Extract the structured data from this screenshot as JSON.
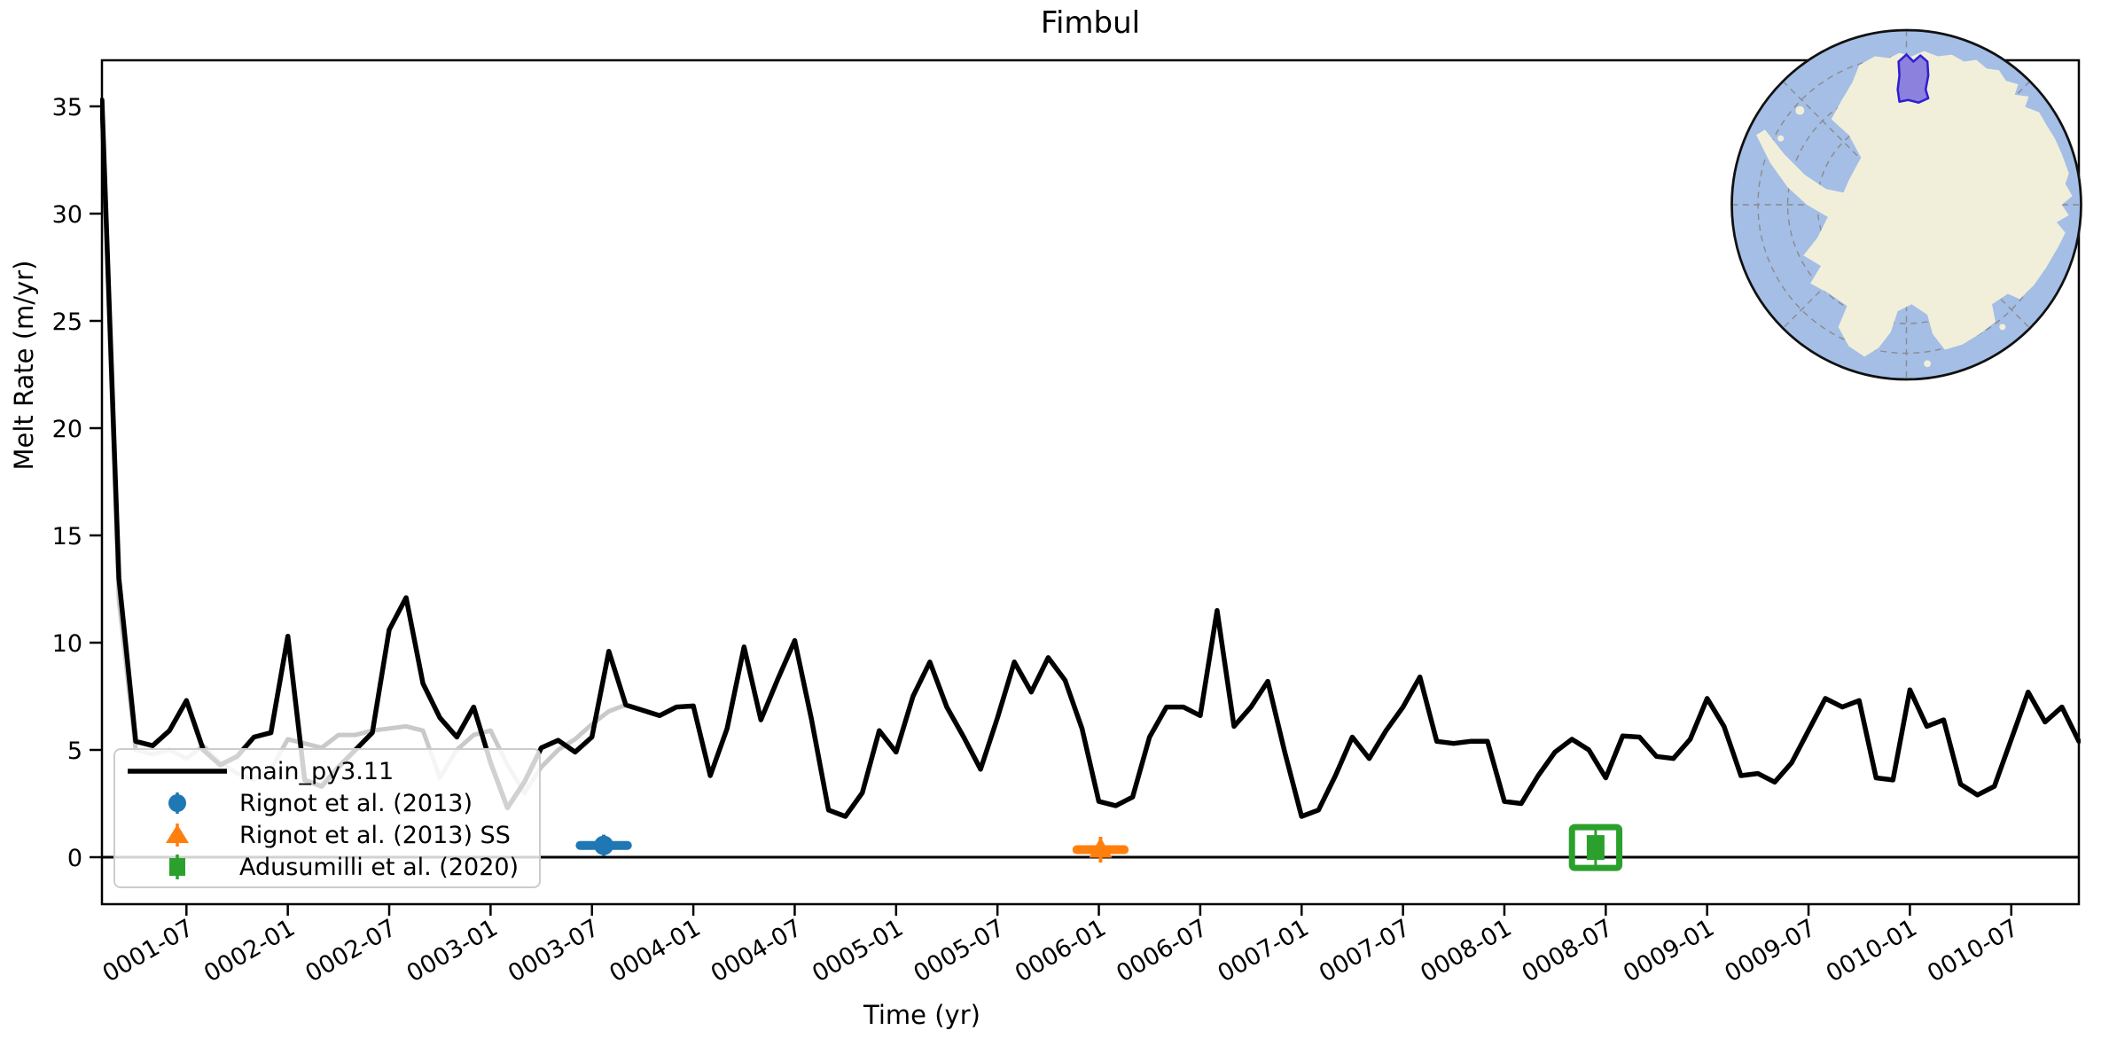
{
  "title": "Fimbul",
  "axes": {
    "xlabel": "Time (yr)",
    "ylabel": "Melt Rate (m/yr)",
    "y_ticks": [
      0,
      5,
      10,
      15,
      20,
      25,
      30,
      35
    ],
    "x_ticks": [
      {
        "label": "0001-07",
        "t": 6
      },
      {
        "label": "0002-01",
        "t": 12
      },
      {
        "label": "0002-07",
        "t": 18
      },
      {
        "label": "0003-01",
        "t": 24
      },
      {
        "label": "0003-07",
        "t": 30
      },
      {
        "label": "0004-01",
        "t": 36
      },
      {
        "label": "0004-07",
        "t": 42
      },
      {
        "label": "0005-01",
        "t": 48
      },
      {
        "label": "0005-07",
        "t": 54
      },
      {
        "label": "0006-01",
        "t": 60
      },
      {
        "label": "0006-07",
        "t": 66
      },
      {
        "label": "0007-01",
        "t": 72
      },
      {
        "label": "0007-07",
        "t": 78
      },
      {
        "label": "0008-01",
        "t": 84
      },
      {
        "label": "0008-07",
        "t": 90
      },
      {
        "label": "0009-01",
        "t": 96
      },
      {
        "label": "0009-07",
        "t": 102
      },
      {
        "label": "0010-01",
        "t": 108
      },
      {
        "label": "0010-07",
        "t": 114
      }
    ]
  },
  "legend": {
    "items": [
      {
        "label": "main_py3.11"
      },
      {
        "label": "Rignot et al. (2013)"
      },
      {
        "label": "Rignot et al. (2013) SS"
      },
      {
        "label": "Adusumilli et al. (2020)"
      }
    ]
  },
  "colors": {
    "main_line": "#000000",
    "background_line": "#c9c9c9",
    "rignot": "#1f77b4",
    "rignot_ss": "#ff7f0e",
    "adusumilli": "#2ca02c",
    "zero_line": "#000000",
    "map_ocean": "#a4bee6",
    "map_land": "#f1efda",
    "map_graticule": "#8a8a8a",
    "map_rim": "#111111",
    "map_highlight_fill": "#6f61dc",
    "map_highlight_stroke": "#2f1fd1"
  },
  "chart_data": {
    "type": "line",
    "title": "Fimbul",
    "xlabel": "Time (yr)",
    "ylabel": "Melt Rate (m/yr)",
    "x_unit": "months since year 0001 month 01 (t=1 is 0001-02, monthly steps)",
    "xlim_months": [
      1,
      118
    ],
    "ylim": [
      -2.2,
      37.1
    ],
    "grid": false,
    "legend_position": "lower left",
    "series": [
      {
        "name": "main_py3.11",
        "color": "#000000",
        "width": 5.5,
        "z": 2,
        "start_t": 1,
        "values": [
          35.3,
          13.0,
          5.4,
          5.2,
          5.9,
          7.3,
          5.0,
          4.3,
          4.7,
          5.6,
          5.8,
          10.3,
          3.6,
          3.3,
          4.2,
          5.0,
          5.8,
          10.6,
          12.1,
          8.1,
          6.5,
          5.6,
          7.0,
          4.4,
          2.3,
          3.5,
          5.1,
          5.45,
          4.9,
          5.6,
          9.6,
          7.1,
          6.85,
          6.6,
          7.0,
          7.05,
          3.8,
          6.0,
          9.8,
          6.4,
          8.3,
          10.1,
          6.4,
          2.2,
          1.9,
          3.0,
          5.9,
          4.9,
          7.5,
          9.1,
          7.0,
          5.6,
          4.1,
          6.5,
          9.1,
          7.7,
          9.3,
          8.25,
          6.0,
          2.6,
          2.4,
          2.8,
          5.6,
          7.0,
          7.0,
          6.6,
          11.5,
          6.1,
          7.0,
          8.2,
          4.9,
          1.9,
          2.2,
          3.8,
          5.6,
          4.6,
          5.9,
          7.0,
          8.4,
          5.4,
          5.3,
          5.4,
          5.4,
          2.6,
          2.5,
          3.8,
          4.9,
          5.5,
          5.0,
          3.7,
          5.65,
          5.6,
          4.7,
          4.6,
          5.5,
          7.4,
          6.1,
          3.8,
          3.9,
          3.5,
          4.4,
          5.9,
          7.4,
          7.0,
          7.3,
          3.7,
          3.6,
          7.8,
          6.1,
          6.4,
          3.4,
          2.9,
          3.3,
          5.5,
          7.7,
          6.3,
          7.0,
          5.4
        ]
      },
      {
        "name": "unlabeled-gray-run",
        "color": "#c9c9c9",
        "width": 5,
        "z": 1,
        "start_t": 1,
        "values": [
          35.0,
          12.0,
          5.0,
          4.8,
          5.0,
          4.6,
          5.2,
          4.4,
          3.9,
          3.6,
          4.1,
          5.5,
          5.3,
          5.1,
          5.7,
          5.7,
          5.9,
          6.0,
          6.1,
          5.9,
          3.7,
          5.0,
          5.7,
          5.9,
          4.3,
          3.0,
          4.2,
          5.0,
          5.5,
          6.2,
          6.8,
          7.1
        ]
      }
    ],
    "markers": [
      {
        "name": "Rignot et al. (2013)",
        "shape": "circle",
        "color": "#1f77b4",
        "t": 30.7,
        "date": "0003-07",
        "value": 0.55,
        "xerr_months": 1.4,
        "yerr": 0.5
      },
      {
        "name": "Rignot et al. (2013) SS",
        "shape": "triangle-up",
        "color": "#ff7f0e",
        "t": 60.1,
        "date": "0006-01",
        "value": 0.35,
        "xerr_months": 1.4,
        "yerr": 0.6
      },
      {
        "name": "Adusumilli et al. (2020)",
        "shape": "boxed-square",
        "color": "#2ca02c",
        "t": 89.4,
        "date": "0008-06",
        "value": 0.45,
        "xerr_months": 1.4,
        "yerr": 0.95
      }
    ],
    "zero_line": 0
  },
  "inset": {
    "name": "antarctica-locator-map",
    "highlight_region": "Fimbul"
  }
}
